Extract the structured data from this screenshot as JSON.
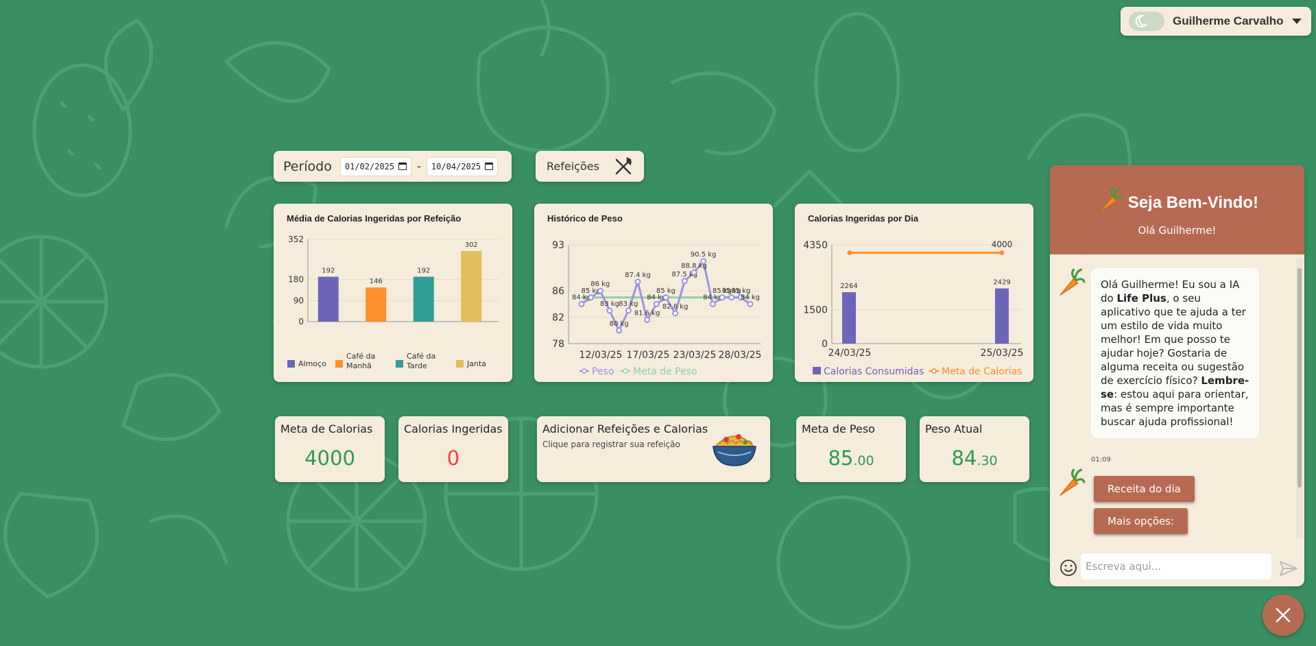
{
  "user": {
    "name": "Guilherme Carvalho",
    "theme_icon": "moon-icon",
    "caret_icon": "caret-down-icon"
  },
  "period": {
    "label": "Período",
    "start": "01/02/2025",
    "end": "10/04/2025",
    "separator": "-"
  },
  "meals_button": {
    "label": "Refeições",
    "icon": "fork-knife-icon"
  },
  "charts": {
    "avg_calories": {
      "title": "Média de Calorias Ingeridas por Refeição",
      "y_ticks": [
        "352",
        "180",
        "90",
        "0"
      ],
      "legend": [
        {
          "line1": "Almoço",
          "line2": "",
          "color": "#6d66b8"
        },
        {
          "line1": "Café da",
          "line2": "Manhã",
          "color": "#ff8f2b"
        },
        {
          "line1": "Café da",
          "line2": "Tarde",
          "color": "#2f9e96"
        },
        {
          "line1": "Janta",
          "line2": "",
          "color": "#e0bd5e"
        }
      ]
    },
    "weight": {
      "title": "Histórico de Peso",
      "y_ticks": [
        "93",
        "86",
        "82",
        "78"
      ],
      "x_ticks": [
        "12/03/25",
        "17/03/25",
        "23/03/25",
        "28/03/25"
      ],
      "legend": [
        "Peso",
        "Meta de Peso"
      ],
      "peso_color": "#9b93e0",
      "meta_color": "#8fd0a5"
    },
    "daily": {
      "title": "Calorias Ingeridas por Dia",
      "y_ticks": [
        "4350",
        "1500",
        "0"
      ],
      "x_ticks": [
        "24/03/25",
        "25/03/25"
      ],
      "legend": [
        "Calorias Consumidas",
        "Meta de Calorias"
      ],
      "bar_color": "#6d66b8",
      "meta_color": "#ff8f2b"
    }
  },
  "chart_data": [
    {
      "type": "bar",
      "title": "Média de Calorias Ingeridas por Refeição",
      "categories": [
        "Almoço",
        "Café da Manhã",
        "Café da Tarde",
        "Janta"
      ],
      "values": [
        192,
        146,
        192,
        302
      ],
      "ylim": [
        0,
        352
      ],
      "colors": [
        "#6d66b8",
        "#ff8f2b",
        "#2f9e96",
        "#e0bd5e"
      ],
      "legend": "bottom"
    },
    {
      "type": "line",
      "title": "Histórico de Peso",
      "ylim": [
        78,
        93
      ],
      "series": [
        {
          "name": "Peso",
          "values": [
            84,
            85,
            86,
            83,
            80,
            83,
            87.4,
            81.6,
            84,
            85,
            82.6,
            87.5,
            88.8,
            90.5,
            84,
            85,
            85,
            85,
            84
          ]
        },
        {
          "name": "Meta de Peso",
          "values": [
            85,
            85,
            85,
            85,
            85,
            85,
            85,
            85,
            85,
            85,
            85,
            85,
            85,
            85,
            85,
            85,
            85,
            85,
            85
          ]
        }
      ],
      "labels": [
        "84 kg",
        "85 kg",
        "86 kg",
        "83 kg",
        "80 kg",
        "83 kg",
        "87.4 kg",
        "81.6 kg",
        "84 kg",
        "85 kg",
        "82.6 kg",
        "87.5 kg",
        "88.8 kg",
        "90.5 kg",
        "84 kg",
        "85 kg",
        "85 kg",
        "85 kg",
        "84 kg"
      ],
      "x_ticks": [
        "12/03/25",
        "17/03/25",
        "23/03/25",
        "28/03/25"
      ],
      "legend": "bottom"
    },
    {
      "type": "bar",
      "title": "Calorias Ingeridas por Dia",
      "categories": [
        "24/03/25",
        "25/03/25"
      ],
      "series": [
        {
          "name": "Calorias Consumidas",
          "values": [
            2264,
            2429
          ]
        },
        {
          "name": "Meta de Calorias",
          "values": [
            4000,
            4000
          ]
        }
      ],
      "ylim": [
        0,
        4350
      ],
      "legend": "bottom"
    }
  ],
  "stats": {
    "meta_calorias": {
      "label": "Meta de Calorias",
      "value": "4000",
      "color": "#2f9a50"
    },
    "calorias_ingeridas": {
      "label": "Calorias Ingeridas",
      "value": "0",
      "color": "#ff3b3b"
    },
    "meta_peso": {
      "label": "Meta de Peso",
      "int": "85",
      "dec": ".00"
    },
    "peso_atual": {
      "label": "Peso Atual",
      "int": "84",
      "dec": ".30"
    }
  },
  "add_meal": {
    "title": "Adicionar Refeições e Calorias",
    "subtitle": "Clique para registrar sua refeição",
    "icon": "noodle-bowl-icon"
  },
  "chat": {
    "title": "Seja Bem-Vindo!",
    "subtitle": "Olá Guilherme!",
    "message": {
      "p1": "Olá Guilherme! Eu sou a IA do ",
      "brand": "Life Plus",
      "p2": ", o seu aplicativo que te ajuda a ter um estilo de vida muito melhor! Em que posso te ajudar hoje? Gostaria de alguma receita ou sugestão de exercício físico? ",
      "bold2": "Lembre-se",
      "p3": ": estou aqui para orientar, mas é sempre importante buscar ajuda profissional!"
    },
    "time": "01:09",
    "options": [
      "Receita do dia",
      "Mais opções:"
    ],
    "input_placeholder": "Escreva aqui...",
    "avatar_icon": "carrot-icon"
  }
}
